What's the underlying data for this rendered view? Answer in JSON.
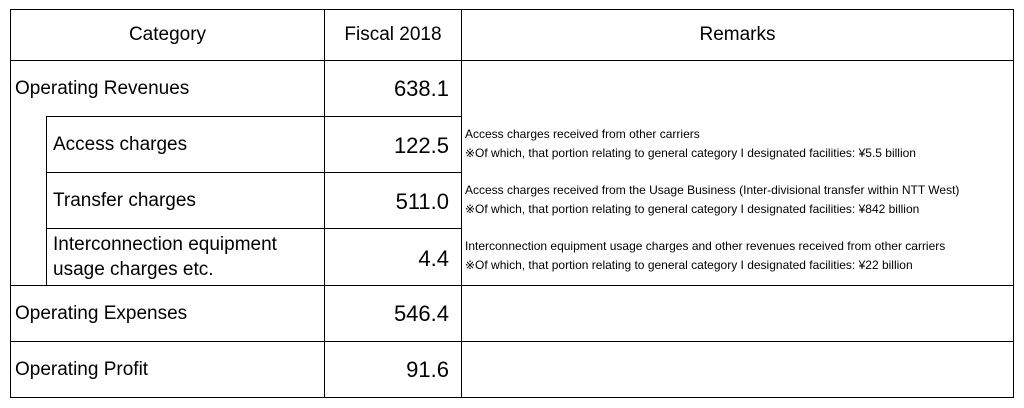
{
  "table": {
    "headers": {
      "category": "Category",
      "fiscal": "Fiscal 2018",
      "remarks": "Remarks"
    },
    "rows": [
      {
        "label": "Operating Revenues",
        "value": "638.1"
      },
      {
        "label": "Access charges",
        "value": "122.5",
        "remark_line1": "Access charges received from other carriers",
        "remark_line2": "※Of which, that portion relating to general category I designated facilities: ¥5.5  billion"
      },
      {
        "label": "Transfer charges",
        "value": "511.0",
        "remark_line1": "Access charges received from the Usage Business (Inter-divisional transfer within NTT West)",
        "remark_line2": "※Of which, that portion relating to general category I designated facilities: ¥842  billion"
      },
      {
        "label_line1": "Interconnection equipment",
        "label_line2": "usage charges etc.",
        "value": "4.4",
        "remark_line1": "Interconnection equipment usage charges and other revenues received from other carriers",
        "remark_line2": "※Of which, that portion relating to general category I designated facilities: ¥22 billion"
      },
      {
        "label": "Operating Expenses",
        "value": "546.4"
      },
      {
        "label": "Operating Profit",
        "value": "91.6"
      }
    ]
  }
}
